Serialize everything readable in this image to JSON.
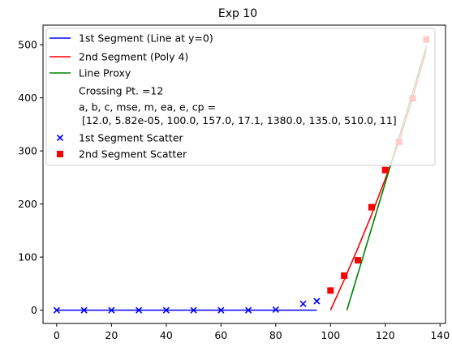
{
  "chart_data": {
    "type": "scatter",
    "title": "Exp 10",
    "xlabel": "",
    "ylabel": "",
    "xlim": [
      -5,
      142
    ],
    "ylim": [
      -25,
      537
    ],
    "xticks": [
      0,
      20,
      40,
      60,
      80,
      100,
      120,
      140
    ],
    "yticks": [
      0,
      100,
      200,
      300,
      400,
      500
    ],
    "grid": false,
    "legend_position": "top-left",
    "legend": [
      {
        "label": "1st Segment (Line at y=0)",
        "kind": "line",
        "color": "#0000ff"
      },
      {
        "label": "2nd Segment (Poly 4)",
        "kind": "line",
        "color": "#ff0000"
      },
      {
        "label": "Line Proxy",
        "kind": "line",
        "color": "#008000"
      },
      {
        "label": "Crossing Pt. =12",
        "kind": "text"
      },
      {
        "label": "a, b, c, mse, m, ea, e, cp =",
        "kind": "text",
        "continuation": " [12.0, 5.82e-05, 100.0, 157.0, 17.1, 1380.0, 135.0, 510.0, 11]"
      },
      {
        "label": "1st Segment Scatter",
        "kind": "marker-x",
        "color": "#0000ff"
      },
      {
        "label": "2nd Segment Scatter",
        "kind": "marker-square",
        "color": "#ff0000"
      }
    ],
    "series": [
      {
        "name": "1st Segment (Line at y=0)",
        "kind": "line",
        "color": "#0000ff",
        "x": [
          0,
          95
        ],
        "y": [
          0,
          0
        ]
      },
      {
        "name": "2nd Segment (Poly 4)",
        "kind": "line",
        "color": "#ff0000",
        "x": [
          100,
          105,
          110,
          115,
          120,
          125,
          130,
          135
        ],
        "y": [
          0,
          57,
          117,
          180,
          247,
          317,
          400,
          490
        ]
      },
      {
        "name": "Line Proxy",
        "kind": "line",
        "color": "#008000",
        "x": [
          106,
          135
        ],
        "y": [
          0,
          497
        ]
      },
      {
        "name": "1st Segment Scatter",
        "kind": "marker-x",
        "color": "#0000ff",
        "x": [
          0,
          10,
          20,
          30,
          40,
          50,
          60,
          70,
          80,
          90,
          95
        ],
        "y": [
          0,
          0,
          0,
          0,
          0,
          0,
          0,
          0,
          1,
          12,
          17
        ]
      },
      {
        "name": "2nd Segment Scatter",
        "kind": "marker-square",
        "color": "#ff0000",
        "x": [
          100,
          105,
          110,
          115,
          120,
          125,
          130,
          135
        ],
        "y": [
          37,
          65,
          94,
          194,
          264,
          317,
          399,
          510
        ]
      }
    ]
  }
}
